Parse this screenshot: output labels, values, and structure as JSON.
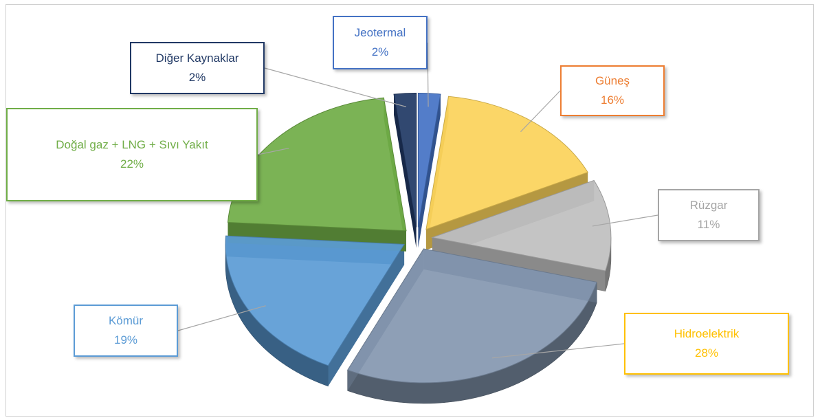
{
  "chart_data": {
    "type": "pie",
    "title": "",
    "slices": [
      {
        "label": "Jeotermal",
        "value": 2,
        "display": "2%",
        "color": "#4472c4",
        "text_color": "#4472c4",
        "border_color": "#4472c4"
      },
      {
        "label": "Güneş",
        "value": 16,
        "display": "16%",
        "color": "#fbd35a",
        "text_color": "#ed7d31",
        "border_color": "#ed7d31"
      },
      {
        "label": "Rüzgar",
        "value": 11,
        "display": "11%",
        "color": "#bfbfbf",
        "text_color": "#a5a5a5",
        "border_color": "#a5a5a5"
      },
      {
        "label": "Hidroelektrik",
        "value": 28,
        "display": "28%",
        "color": "#8497b0",
        "text_color": "#ffc000",
        "border_color": "#ffc000"
      },
      {
        "label": "Kömür",
        "value": 19,
        "display": "19%",
        "color": "#5b9bd5",
        "text_color": "#5b9bd5",
        "border_color": "#5b9bd5"
      },
      {
        "label": "Doğal gaz + LNG + Sıvı Yakıt",
        "value": 22,
        "display": "22%",
        "color": "#70ad47",
        "text_color": "#70ad47",
        "border_color": "#70ad47"
      },
      {
        "label": "Diğer Kaynaklar",
        "value": 2,
        "display": "2%",
        "color": "#203864",
        "text_color": "#203864",
        "border_color": "#203864"
      }
    ],
    "style": "3d-exploded",
    "legend": "none"
  }
}
